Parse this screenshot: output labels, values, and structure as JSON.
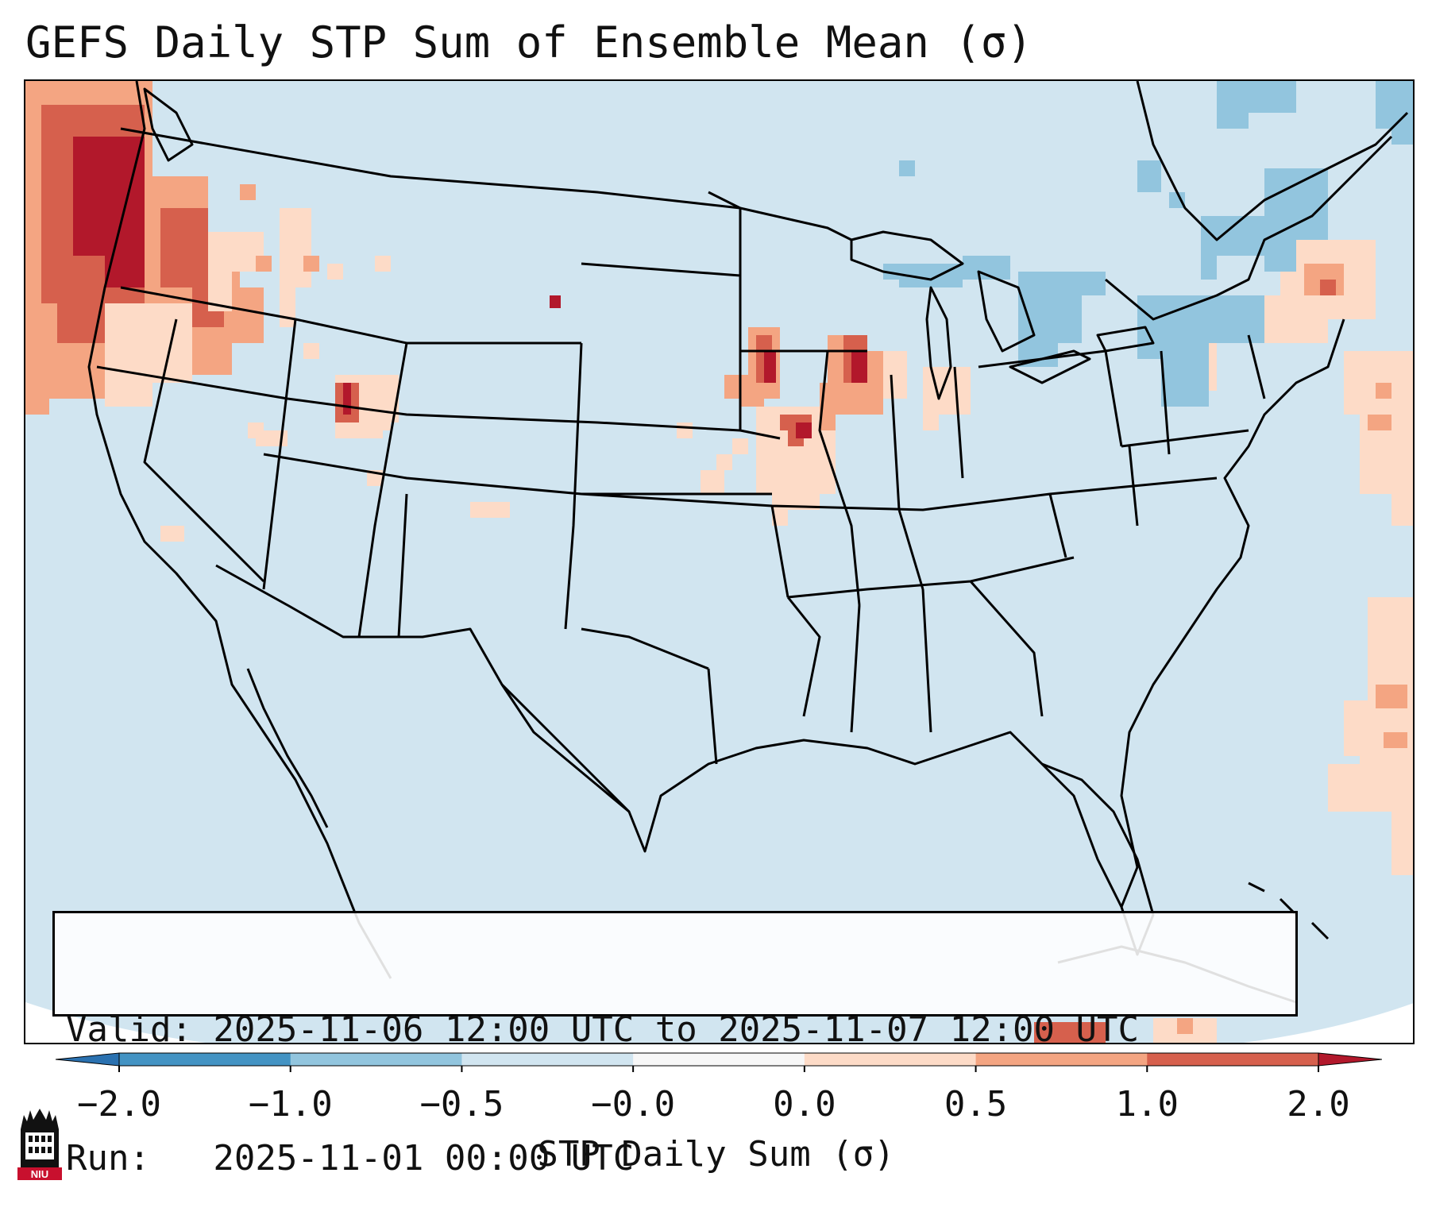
{
  "title": "GEFS Daily STP Sum of Ensemble Mean (σ)",
  "info": {
    "valid_line": "Valid: 2025-11-06 12:00 UTC to 2025-11-07 12:00 UTC",
    "run_line": "Run:   2025-11-01 00:00 UTC"
  },
  "colorbar": {
    "label": "STP Daily Sum (σ)",
    "tick_labels": [
      "−2.0",
      "−1.0",
      "−0.5",
      "−0.0",
      "0.0",
      "0.5",
      "1.0",
      "2.0"
    ],
    "bins": [
      {
        "from": -3,
        "to": -2,
        "color": "#2a71b0"
      },
      {
        "from": -2,
        "to": -1,
        "color": "#4393c3"
      },
      {
        "from": -1,
        "to": -0.5,
        "color": "#92c5de"
      },
      {
        "from": -0.5,
        "to": 0,
        "color": "#d1e5f0"
      },
      {
        "from": 0,
        "to": 0,
        "color": "#f7f7f7"
      },
      {
        "from": 0,
        "to": 0.5,
        "color": "#fddbc7"
      },
      {
        "from": 0.5,
        "to": 1,
        "color": "#f4a582"
      },
      {
        "from": 1,
        "to": 2,
        "color": "#d6604d"
      },
      {
        "from": 2,
        "to": 3,
        "color": "#b2182b"
      }
    ],
    "extend": "both"
  },
  "map": {
    "projection": "Lambert conformal, CONUS",
    "background_color": "#d1e5f0",
    "features": [
      "coastlines",
      "country borders",
      "US state borders",
      "Great Lakes"
    ]
  },
  "logo": {
    "text": "NIU"
  }
}
